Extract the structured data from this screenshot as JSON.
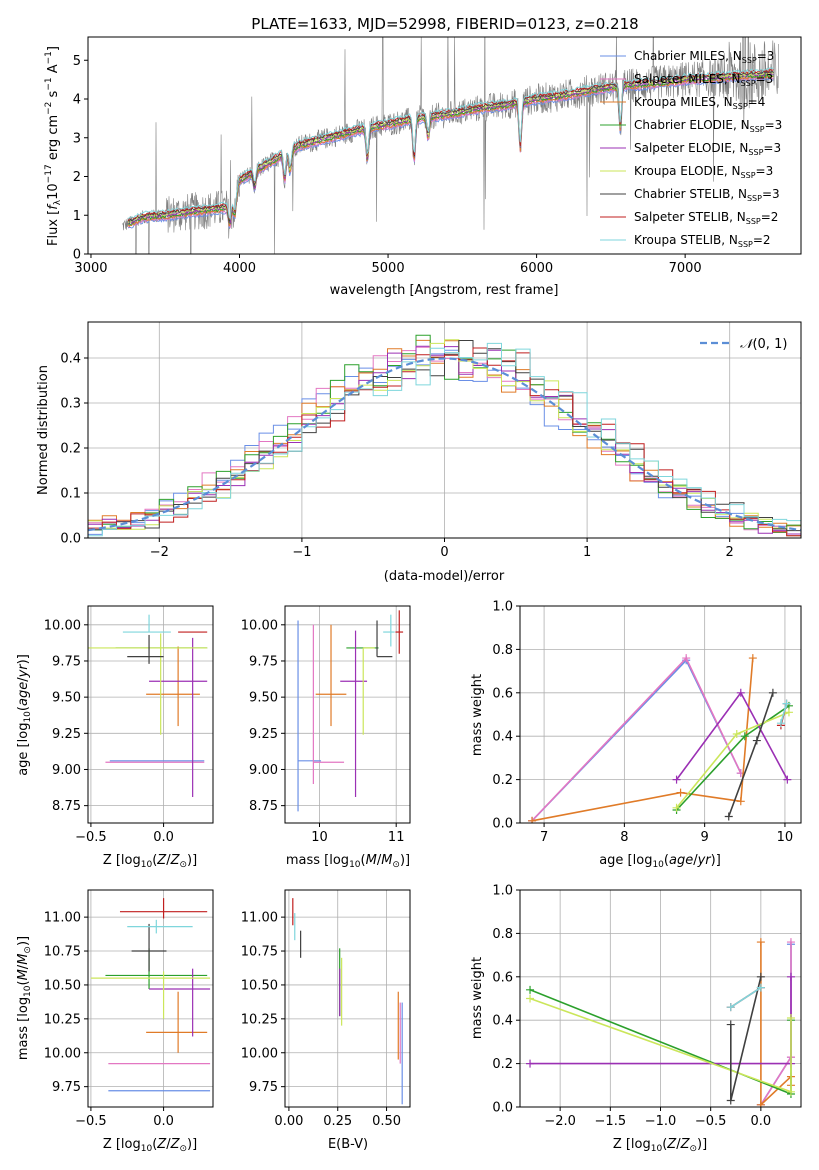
{
  "page_title": "PLATE=1633, MJD=52998, FIBERID=0123, z=0.218",
  "colors": {
    "grid": "#b0b0b0",
    "data": "#7f7f7f",
    "c_miles": "#6a8fe6",
    "s_miles": "#e377c2",
    "k_miles": "#e07b28",
    "c_elodie": "#2ca02c",
    "s_elodie": "#9b30b4",
    "k_elodie": "#cbe65a",
    "c_stelib": "#404040",
    "s_stelib": "#c01f1f",
    "k_stelib": "#7fd6dc"
  },
  "chart_data": [
    {
      "id": "spectrum",
      "type": "line",
      "title": "PLATE=1633, MJD=52998, FIBERID=0123, z=0.218",
      "xlabel": "wavelength [Angstrom, rest frame]",
      "ylabel": "Flux [f_λ 10^-17 erg cm^-2 s^-1 A^-1]",
      "xlim": [
        2980,
        7780
      ],
      "ylim": [
        0,
        5.6
      ],
      "xticks": [
        3000,
        4000,
        5000,
        6000,
        7000
      ],
      "yticks": [
        0,
        1,
        2,
        3,
        4,
        5
      ],
      "grid": false,
      "legend_position": "top-right",
      "legend": [
        {
          "label": "Chabrier MILES, N",
          "sub": "SSP",
          "suffix": "=3",
          "color": "#6a8fe6"
        },
        {
          "label": "Salpeter MILES, N",
          "sub": "SSP",
          "suffix": "=3",
          "color": "#e377c2"
        },
        {
          "label": "Kroupa MILES, N",
          "sub": "SSP",
          "suffix": "=4",
          "color": "#e07b28"
        },
        {
          "label": "Chabrier ELODIE, N",
          "sub": "SSP",
          "suffix": "=3",
          "color": "#2ca02c"
        },
        {
          "label": "Salpeter ELODIE, N",
          "sub": "SSP",
          "suffix": "=3",
          "color": "#9b30b4"
        },
        {
          "label": "Kroupa ELODIE, N",
          "sub": "SSP",
          "suffix": "=3",
          "color": "#cbe65a"
        },
        {
          "label": "Chabrier STELIB, N",
          "sub": "SSP",
          "suffix": "=3",
          "color": "#404040"
        },
        {
          "label": "Salpeter STELIB, N",
          "sub": "SSP",
          "suffix": "=2",
          "color": "#c01f1f"
        },
        {
          "label": "Kroupa STELIB, N",
          "sub": "SSP",
          "suffix": "=2",
          "color": "#7fd6dc"
        }
      ],
      "continuum": {
        "x": [
          3200,
          3350,
          3500,
          3700,
          3950,
          4000,
          4200,
          4400,
          4600,
          4800,
          5000,
          5200,
          5400,
          5600,
          5800,
          6000,
          6200,
          6400,
          6600,
          6800,
          7000,
          7200,
          7400,
          7600
        ],
        "y": [
          0.7,
          0.95,
          1.0,
          1.1,
          1.2,
          1.9,
          2.35,
          2.8,
          3.0,
          3.2,
          3.35,
          3.5,
          3.6,
          3.75,
          3.85,
          4.0,
          4.1,
          4.25,
          4.35,
          4.4,
          4.5,
          4.55,
          4.6,
          4.65
        ]
      },
      "data_start": 3210,
      "data_end": 7630,
      "model_start": 3250,
      "model_end": 7600
    },
    {
      "id": "residuals",
      "type": "histogram",
      "xlabel": "(data-model)/error",
      "ylabel": "Normed distribution",
      "xlim": [
        -2.5,
        2.5
      ],
      "ylim": [
        0,
        0.48
      ],
      "xticks": [
        -2,
        -1,
        0,
        1,
        2
      ],
      "yticks": [
        0.0,
        0.1,
        0.2,
        0.3,
        0.4
      ],
      "grid": true,
      "legend_position": "top-right",
      "reference_label": "N(0,1)",
      "reference_color": "#5b8ed6",
      "bin_width": 0.1
    },
    {
      "id": "Z-age",
      "type": "scatter",
      "xlabel": "Z [log10(Z/Z☉)]",
      "ylabel": "age  [log10(age/yr)]",
      "xlim": [
        -0.52,
        0.34
      ],
      "ylim": [
        8.63,
        10.13
      ],
      "xticks": [
        -0.5,
        0.0
      ],
      "yticks": [
        8.75,
        9.0,
        9.25,
        9.5,
        9.75,
        10.0
      ],
      "grid": true,
      "points": [
        {
          "x": 0.2,
          "y": 9.06,
          "xerr": [
            0.57,
            0.08
          ],
          "yerr": [
            0.0,
            0.0
          ],
          "color": "#6a8fe6"
        },
        {
          "x": 0.2,
          "y": 9.05,
          "xerr": [
            0.6,
            0.08
          ],
          "yerr": [
            0.0,
            0.0
          ],
          "color": "#e377c2"
        },
        {
          "x": 0.1,
          "y": 9.52,
          "xerr": [
            0.22,
            0.15
          ],
          "yerr": [
            0.22,
            0.33
          ],
          "color": "#e07b28"
        },
        {
          "x": 0.05,
          "y": 9.84,
          "xerr": [
            0.38,
            0.25
          ],
          "yerr": [
            0.0,
            0.0
          ],
          "color": "#2ca02c"
        },
        {
          "x": 0.2,
          "y": 9.61,
          "xerr": [
            0.3,
            0.1
          ],
          "yerr": [
            0.8,
            0.3
          ],
          "color": "#9b30b4"
        },
        {
          "x": -0.02,
          "y": 9.84,
          "xerr": [
            0.5,
            0.32
          ],
          "yerr": [
            0.6,
            0.1
          ],
          "color": "#cbe65a"
        },
        {
          "x": -0.1,
          "y": 9.78,
          "xerr": [
            0.15,
            0.1
          ],
          "yerr": [
            0.05,
            0.15
          ],
          "color": "#404040"
        },
        {
          "x": 0.2,
          "y": 9.95,
          "xerr": [
            0.1,
            0.1
          ],
          "yerr": [
            0.0,
            0.0
          ],
          "color": "#c01f1f"
        },
        {
          "x": -0.1,
          "y": 9.95,
          "xerr": [
            0.18,
            0.15
          ],
          "yerr": [
            0.0,
            0.12
          ],
          "color": "#7fd6dc"
        }
      ]
    },
    {
      "id": "mass-age",
      "type": "scatter",
      "xlabel": "mass [log10(M/M☉)]",
      "ylabel": "",
      "xlim": [
        9.55,
        11.18
      ],
      "ylim": [
        8.63,
        10.13
      ],
      "xticks": [
        10,
        11
      ],
      "yticks": [
        8.75,
        9.0,
        9.25,
        9.5,
        9.75,
        10.0
      ],
      "grid": true,
      "points": [
        {
          "x": 9.72,
          "y": 9.06,
          "xerr": [
            0.0,
            0.3
          ],
          "yerr": [
            0.35,
            0.97
          ],
          "color": "#6a8fe6"
        },
        {
          "x": 9.92,
          "y": 9.05,
          "xerr": [
            0.0,
            0.4
          ],
          "yerr": [
            0.15,
            0.95
          ],
          "color": "#e377c2"
        },
        {
          "x": 10.15,
          "y": 9.52,
          "xerr": [
            0.2,
            0.2
          ],
          "yerr": [
            0.22,
            0.48
          ],
          "color": "#e07b28"
        },
        {
          "x": 10.57,
          "y": 9.84,
          "xerr": [
            0.22,
            0.2
          ],
          "yerr": [
            0.0,
            0.0
          ],
          "color": "#2ca02c"
        },
        {
          "x": 10.47,
          "y": 9.61,
          "xerr": [
            0.2,
            0.15
          ],
          "yerr": [
            0.8,
            0.35
          ],
          "color": "#9b30b4"
        },
        {
          "x": 10.57,
          "y": 9.84,
          "xerr": [
            0.0,
            0.15
          ],
          "yerr": [
            0.6,
            0.0
          ],
          "color": "#cbe65a"
        },
        {
          "x": 10.75,
          "y": 9.78,
          "xerr": [
            0.0,
            0.2
          ],
          "yerr": [
            0.0,
            0.25
          ],
          "color": "#404040"
        },
        {
          "x": 11.04,
          "y": 9.95,
          "xerr": [
            0.05,
            0.05
          ],
          "yerr": [
            0.15,
            0.15
          ],
          "color": "#c01f1f"
        },
        {
          "x": 10.93,
          "y": 9.95,
          "xerr": [
            0.1,
            0.05
          ],
          "yerr": [
            0.1,
            0.12
          ],
          "color": "#7fd6dc"
        }
      ]
    },
    {
      "id": "age-weight",
      "type": "line",
      "xlabel": "age  [log10(age/yr)]",
      "ylabel": "mass weight",
      "xlim": [
        6.7,
        10.2
      ],
      "ylim": [
        0,
        1.0
      ],
      "xticks": [
        7,
        8,
        9,
        10
      ],
      "yticks": [
        0.0,
        0.2,
        0.4,
        0.6,
        0.8,
        1.0
      ],
      "grid": true,
      "series": [
        {
          "color": "#6a8fe6",
          "x": [
            6.85,
            8.77,
            9.45
          ],
          "y": [
            0.01,
            0.75,
            0.23
          ]
        },
        {
          "color": "#e377c2",
          "x": [
            6.85,
            8.77,
            9.45
          ],
          "y": [
            0.01,
            0.76,
            0.23
          ]
        },
        {
          "color": "#e07b28",
          "x": [
            6.85,
            8.7,
            9.45,
            9.6
          ],
          "y": [
            0.01,
            0.14,
            0.1,
            0.76
          ]
        },
        {
          "color": "#2ca02c",
          "x": [
            8.65,
            9.5,
            10.05
          ],
          "y": [
            0.06,
            0.4,
            0.54
          ]
        },
        {
          "color": "#9b30b4",
          "x": [
            8.65,
            9.45,
            10.03
          ],
          "y": [
            0.2,
            0.6,
            0.2
          ]
        },
        {
          "color": "#cbe65a",
          "x": [
            8.65,
            9.4,
            10.05
          ],
          "y": [
            0.07,
            0.41,
            0.51
          ]
        },
        {
          "color": "#404040",
          "x": [
            9.3,
            9.65,
            9.85
          ],
          "y": [
            0.03,
            0.38,
            0.6
          ]
        },
        {
          "color": "#c01f1f",
          "x": [
            9.95,
            10.02
          ],
          "y": [
            0.45,
            0.55
          ]
        },
        {
          "color": "#7fd6dc",
          "x": [
            9.95,
            10.02
          ],
          "y": [
            0.46,
            0.55
          ]
        }
      ]
    },
    {
      "id": "Z-mass",
      "type": "scatter",
      "xlabel": "Z [log10(Z/Z☉)]",
      "ylabel": "mass [log10(M/M☉)]",
      "xlim": [
        -0.52,
        0.34
      ],
      "ylim": [
        9.6,
        11.2
      ],
      "xticks": [
        -0.5,
        0.0
      ],
      "yticks": [
        9.75,
        10.0,
        10.25,
        10.5,
        10.75,
        11.0
      ],
      "grid": true,
      "points": [
        {
          "x": 0.22,
          "y": 9.72,
          "xerr": [
            0.6,
            0.1
          ],
          "yerr": [
            0.0,
            0.0
          ],
          "color": "#6a8fe6"
        },
        {
          "x": 0.22,
          "y": 9.92,
          "xerr": [
            0.6,
            0.1
          ],
          "yerr": [
            0.0,
            0.0
          ],
          "color": "#e377c2"
        },
        {
          "x": 0.1,
          "y": 10.15,
          "xerr": [
            0.22,
            0.2
          ],
          "yerr": [
            0.15,
            0.3
          ],
          "color": "#e07b28"
        },
        {
          "x": -0.1,
          "y": 10.57,
          "xerr": [
            0.3,
            0.4
          ],
          "yerr": [
            0.1,
            0.2
          ],
          "color": "#2ca02c"
        },
        {
          "x": 0.2,
          "y": 10.47,
          "xerr": [
            0.3,
            0.12
          ],
          "yerr": [
            0.35,
            0.15
          ],
          "color": "#9b30b4"
        },
        {
          "x": 0.0,
          "y": 10.55,
          "xerr": [
            0.5,
            0.32
          ],
          "yerr": [
            0.3,
            0.05
          ],
          "color": "#cbe65a"
        },
        {
          "x": -0.1,
          "y": 10.75,
          "xerr": [
            0.12,
            0.12
          ],
          "yerr": [
            0.15,
            0.2
          ],
          "color": "#404040"
        },
        {
          "x": 0.0,
          "y": 11.04,
          "xerr": [
            0.3,
            0.3
          ],
          "yerr": [
            0.05,
            0.1
          ],
          "color": "#c01f1f"
        },
        {
          "x": -0.05,
          "y": 10.93,
          "xerr": [
            0.2,
            0.25
          ],
          "yerr": [
            0.05,
            0.05
          ],
          "color": "#7fd6dc"
        }
      ]
    },
    {
      "id": "ebv-mass",
      "type": "scatter",
      "xlabel": "E(B-V)",
      "ylabel": "",
      "xlim": [
        -0.02,
        0.62
      ],
      "ylim": [
        9.6,
        11.2
      ],
      "xticks": [
        0.0,
        0.25,
        0.5
      ],
      "yticks": [
        9.75,
        10.0,
        10.25,
        10.5,
        10.75,
        11.0
      ],
      "grid": true,
      "points": [
        {
          "x": 0.58,
          "y": 9.72,
          "xerr": [
            0.0,
            0.0
          ],
          "yerr": [
            0.1,
            0.65
          ],
          "color": "#6a8fe6"
        },
        {
          "x": 0.57,
          "y": 9.92,
          "xerr": [
            0.0,
            0.0
          ],
          "yerr": [
            0.0,
            0.45
          ],
          "color": "#e377c2"
        },
        {
          "x": 0.56,
          "y": 10.15,
          "xerr": [
            0.0,
            0.0
          ],
          "yerr": [
            0.2,
            0.3
          ],
          "color": "#e07b28"
        },
        {
          "x": 0.26,
          "y": 10.57,
          "xerr": [
            0.0,
            0.0
          ],
          "yerr": [
            0.3,
            0.2
          ],
          "color": "#2ca02c"
        },
        {
          "x": 0.26,
          "y": 10.47,
          "xerr": [
            0.0,
            0.0
          ],
          "yerr": [
            0.2,
            0.15
          ],
          "color": "#9b30b4"
        },
        {
          "x": 0.27,
          "y": 10.5,
          "xerr": [
            0.0,
            0.0
          ],
          "yerr": [
            0.3,
            0.2
          ],
          "color": "#cbe65a"
        },
        {
          "x": 0.06,
          "y": 10.8,
          "xerr": [
            0.0,
            0.0
          ],
          "yerr": [
            0.1,
            0.1
          ],
          "color": "#404040"
        },
        {
          "x": 0.02,
          "y": 11.04,
          "xerr": [
            0.0,
            0.0
          ],
          "yerr": [
            0.1,
            0.1
          ],
          "color": "#c01f1f"
        },
        {
          "x": 0.03,
          "y": 10.93,
          "xerr": [
            0.0,
            0.0
          ],
          "yerr": [
            0.1,
            0.1
          ],
          "color": "#7fd6dc"
        }
      ]
    },
    {
      "id": "Z-weight",
      "type": "line",
      "xlabel": "Z [log10(Z/Z☉)]",
      "ylabel": "mass weight",
      "xlim": [
        -2.4,
        0.4
      ],
      "ylim": [
        0,
        1.0
      ],
      "xticks": [
        -2.0,
        -1.5,
        -1.0,
        -0.5,
        0.0
      ],
      "yticks": [
        0.0,
        0.2,
        0.4,
        0.6,
        0.8,
        1.0
      ],
      "grid": true,
      "series": [
        {
          "color": "#6a8fe6",
          "x": [
            0.3,
            0.3,
            0.0
          ],
          "y": [
            0.75,
            0.23,
            0.01
          ]
        },
        {
          "color": "#e377c2",
          "x": [
            0.3,
            0.3,
            0.0
          ],
          "y": [
            0.76,
            0.23,
            0.01
          ]
        },
        {
          "color": "#e07b28",
          "x": [
            0.0,
            0.0,
            0.3,
            0.3
          ],
          "y": [
            0.76,
            0.01,
            0.14,
            0.1
          ]
        },
        {
          "color": "#2ca02c",
          "x": [
            -2.3,
            0.3,
            0.3
          ],
          "y": [
            0.54,
            0.06,
            0.4
          ]
        },
        {
          "color": "#9b30b4",
          "x": [
            -2.3,
            0.3,
            0.3
          ],
          "y": [
            0.2,
            0.2,
            0.6
          ]
        },
        {
          "color": "#cbe65a",
          "x": [
            -2.3,
            0.3,
            0.3
          ],
          "y": [
            0.5,
            0.07,
            0.41
          ]
        },
        {
          "color": "#404040",
          "x": [
            -0.3,
            -0.3,
            0.0
          ],
          "y": [
            0.38,
            0.03,
            0.6
          ]
        },
        {
          "color": "#c01f1f",
          "x": [
            -0.3,
            0.0
          ],
          "y": [
            0.46,
            0.55
          ]
        },
        {
          "color": "#7fd6dc",
          "x": [
            -0.3,
            0.0
          ],
          "y": [
            0.46,
            0.55
          ]
        }
      ]
    }
  ]
}
